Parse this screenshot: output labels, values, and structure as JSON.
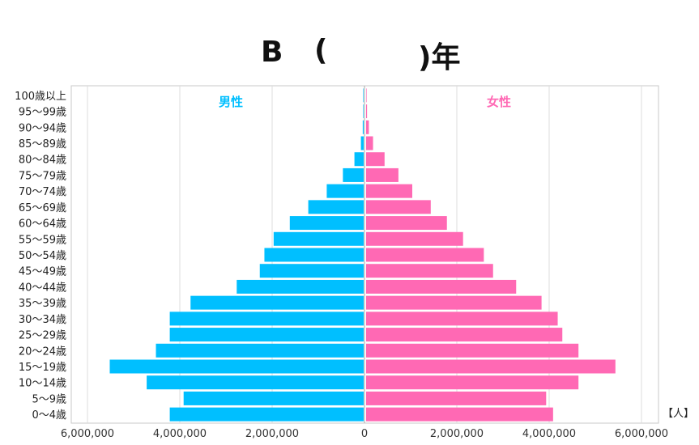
{
  "title": {
    "letter": "B",
    "open": "(",
    "close_year": ")年"
  },
  "chart_data": {
    "type": "bar",
    "orientation": "horizontal-population-pyramid",
    "categories": [
      "0～4歳",
      "5～9歳",
      "10～14歳",
      "15～19歳",
      "20～24歳",
      "25～29歳",
      "30～34歳",
      "35～39歳",
      "40～44歳",
      "45～49歳",
      "50～54歳",
      "55～59歳",
      "60～64歳",
      "65～69歳",
      "70～74歳",
      "75～79歳",
      "80～84歳",
      "85～89歳",
      "90～94歳",
      "95～99歳",
      "100歳以上"
    ],
    "series": [
      {
        "name": "男性",
        "color": "#00bfff",
        "values": [
          4200000,
          3900000,
          4700000,
          5500000,
          4500000,
          4200000,
          4200000,
          3750000,
          2750000,
          2250000,
          2150000,
          1950000,
          1600000,
          1200000,
          800000,
          450000,
          200000,
          60000,
          20000,
          10000,
          10000
        ]
      },
      {
        "name": "女性",
        "color": "#ff69b4",
        "values": [
          4050000,
          3900000,
          4600000,
          5400000,
          4600000,
          4250000,
          4150000,
          3800000,
          3250000,
          2750000,
          2550000,
          2100000,
          1750000,
          1400000,
          1000000,
          700000,
          400000,
          150000,
          60000,
          20000,
          10000
        ]
      }
    ],
    "xticks": [
      -6000000,
      -4000000,
      -2000000,
      0,
      2000000,
      4000000,
      6000000
    ],
    "xtick_labels": [
      "6,000,000",
      "4,000,000",
      "2,000,000",
      "0",
      "2,000,000",
      "4,000,000",
      "6,000,000"
    ],
    "xlim": [
      -6000000,
      6000000
    ],
    "unit_label": "【人】",
    "grid": true,
    "legend_placement": "inside-top"
  }
}
